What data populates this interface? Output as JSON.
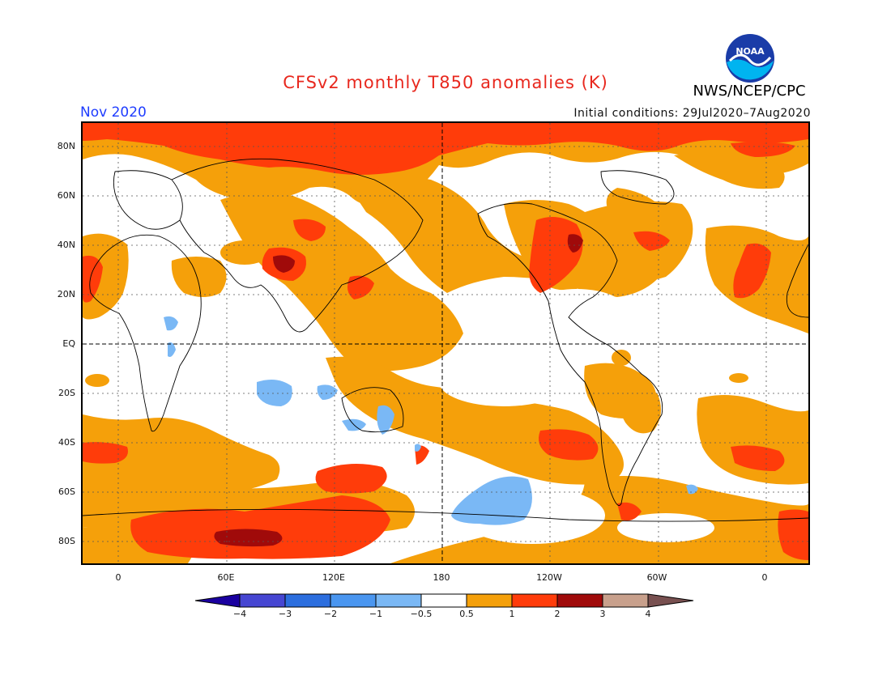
{
  "header": {
    "title": "CFSv2 monthly T850 anomalies (K)",
    "agency": "NWS/NCEP/CPC",
    "logo_text": "NOAA",
    "month": "Nov 2020",
    "initial_conditions": "Initial conditions: 29Jul2020–7Aug2020"
  },
  "axes": {
    "lat_labels": [
      "80N",
      "60N",
      "40N",
      "20N",
      "EQ",
      "20S",
      "40S",
      "60S",
      "80S"
    ],
    "lon_labels": [
      "0",
      "60E",
      "120E",
      "180",
      "120W",
      "60W",
      "0"
    ]
  },
  "legend": {
    "labels": [
      "−4",
      "−3",
      "−2",
      "−1",
      "−0.5",
      "0.5",
      "1",
      "2",
      "3",
      "4"
    ],
    "colors": [
      "#1a00a0",
      "#4646d2",
      "#2c6ede",
      "#4a96f0",
      "#7ab8f5",
      "#ffffff",
      "#f5a00a",
      "#ff3c0a",
      "#a00a0a",
      "#c8a08c",
      "#785050"
    ]
  },
  "colors": {
    "orange": "#f5a00a",
    "red": "#ff3c0a",
    "darkred": "#a00a0a",
    "lightblue": "#7ab8f5",
    "title": "#e8281e",
    "month": "#1e3cff"
  }
}
